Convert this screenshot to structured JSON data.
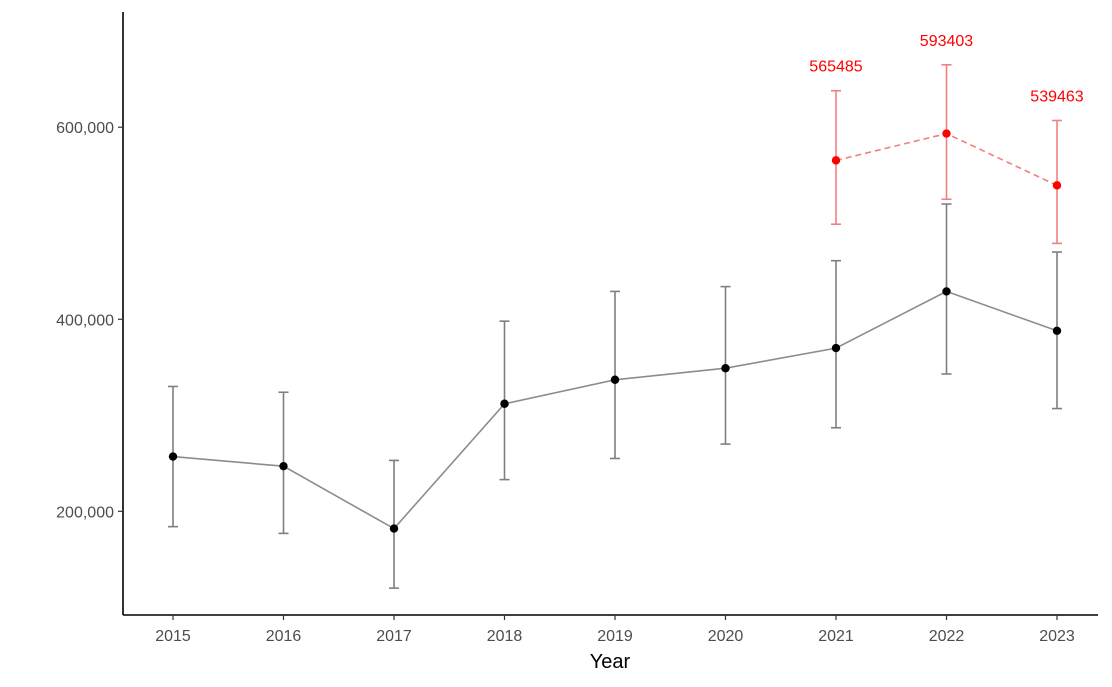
{
  "chart_data": {
    "type": "line",
    "title": "",
    "xlabel": "Year",
    "ylabel": "",
    "ylim": [
      92000,
      720000
    ],
    "x_categories": [
      "2015",
      "2016",
      "2017",
      "2018",
      "2019",
      "2020",
      "2021",
      "2022",
      "2023"
    ],
    "y_ticks": [
      {
        "value": 200000,
        "label": "200,000"
      },
      {
        "value": 400000,
        "label": "400,000"
      },
      {
        "value": 600000,
        "label": "600,000"
      }
    ],
    "grid": false,
    "legend": "none",
    "series": [
      {
        "style": "solid",
        "line_color": "#8c8c8c",
        "point_color": "#000000",
        "errorbar_color": "#7f7f7f",
        "points": [
          {
            "x": "2015",
            "y": 257000,
            "lower": 184000,
            "upper": 330000
          },
          {
            "x": "2016",
            "y": 247000,
            "lower": 177000,
            "upper": 324000
          },
          {
            "x": "2017",
            "y": 182000,
            "lower": 120000,
            "upper": 253000
          },
          {
            "x": "2018",
            "y": 312000,
            "lower": 233000,
            "upper": 398000
          },
          {
            "x": "2019",
            "y": 337000,
            "lower": 255000,
            "upper": 429000
          },
          {
            "x": "2020",
            "y": 349000,
            "lower": 270000,
            "upper": 434000
          },
          {
            "x": "2021",
            "y": 370000,
            "lower": 287000,
            "upper": 461000
          },
          {
            "x": "2022",
            "y": 429000,
            "lower": 343000,
            "upper": 520000
          },
          {
            "x": "2023",
            "y": 388000,
            "lower": 307000,
            "upper": 470000
          }
        ]
      },
      {
        "style": "dashed",
        "line_color": "#f08080",
        "point_color": "#ff0000",
        "errorbar_color": "#f08080",
        "label_color": "#ff0000",
        "points": [
          {
            "x": "2021",
            "y": 565485,
            "lower": 499000,
            "upper": 638000,
            "label": "565485"
          },
          {
            "x": "2022",
            "y": 593403,
            "lower": 525000,
            "upper": 665000,
            "label": "593403"
          },
          {
            "x": "2023",
            "y": 539463,
            "lower": 479000,
            "upper": 607000,
            "label": "539463"
          }
        ]
      }
    ]
  }
}
